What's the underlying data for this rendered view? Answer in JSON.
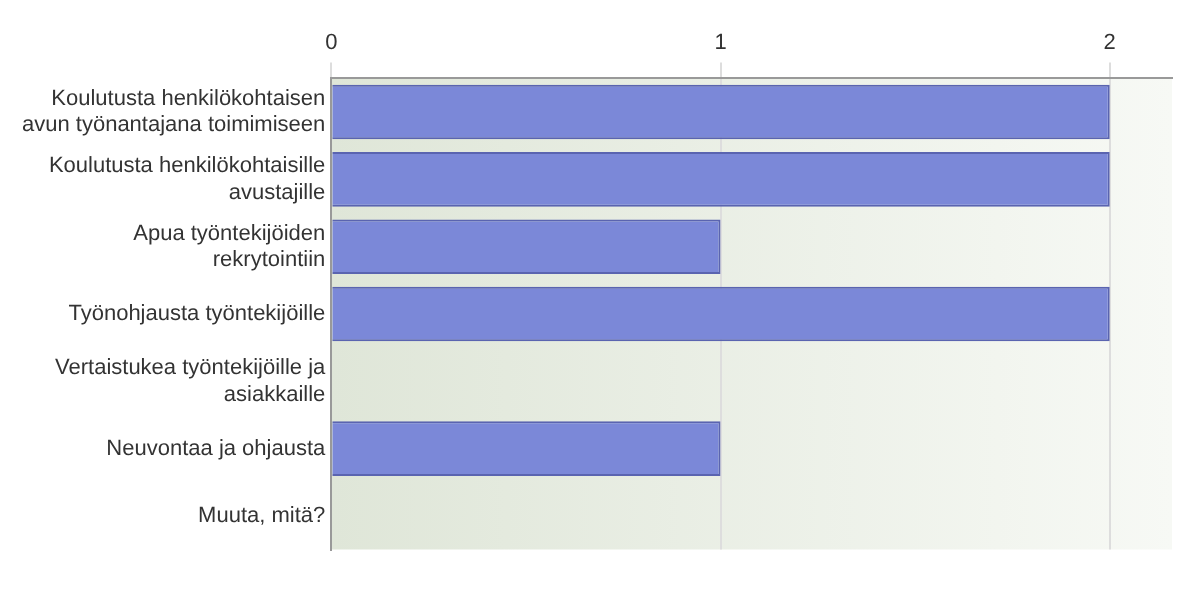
{
  "chart_data": {
    "type": "bar",
    "orientation": "horizontal",
    "categories": [
      "Koulutusta henkilökohtaisen avun työnantajana toimimiseen",
      "Koulutusta henkilökohtaisille avustajille",
      "Apua työntekijöiden rekrytointiin",
      "Työnohjausta työntekijöille",
      "Vertaistukea työntekijöille ja asiakkaille",
      "Neuvontaa ja ohjausta",
      "Muuta, mitä?"
    ],
    "values": [
      2,
      2,
      1,
      2,
      0,
      1,
      0
    ],
    "color": "#7b88d8",
    "xlim": [
      0,
      2.16
    ],
    "xticks": [
      0,
      1,
      2
    ],
    "grid": "x",
    "legend": false
  }
}
